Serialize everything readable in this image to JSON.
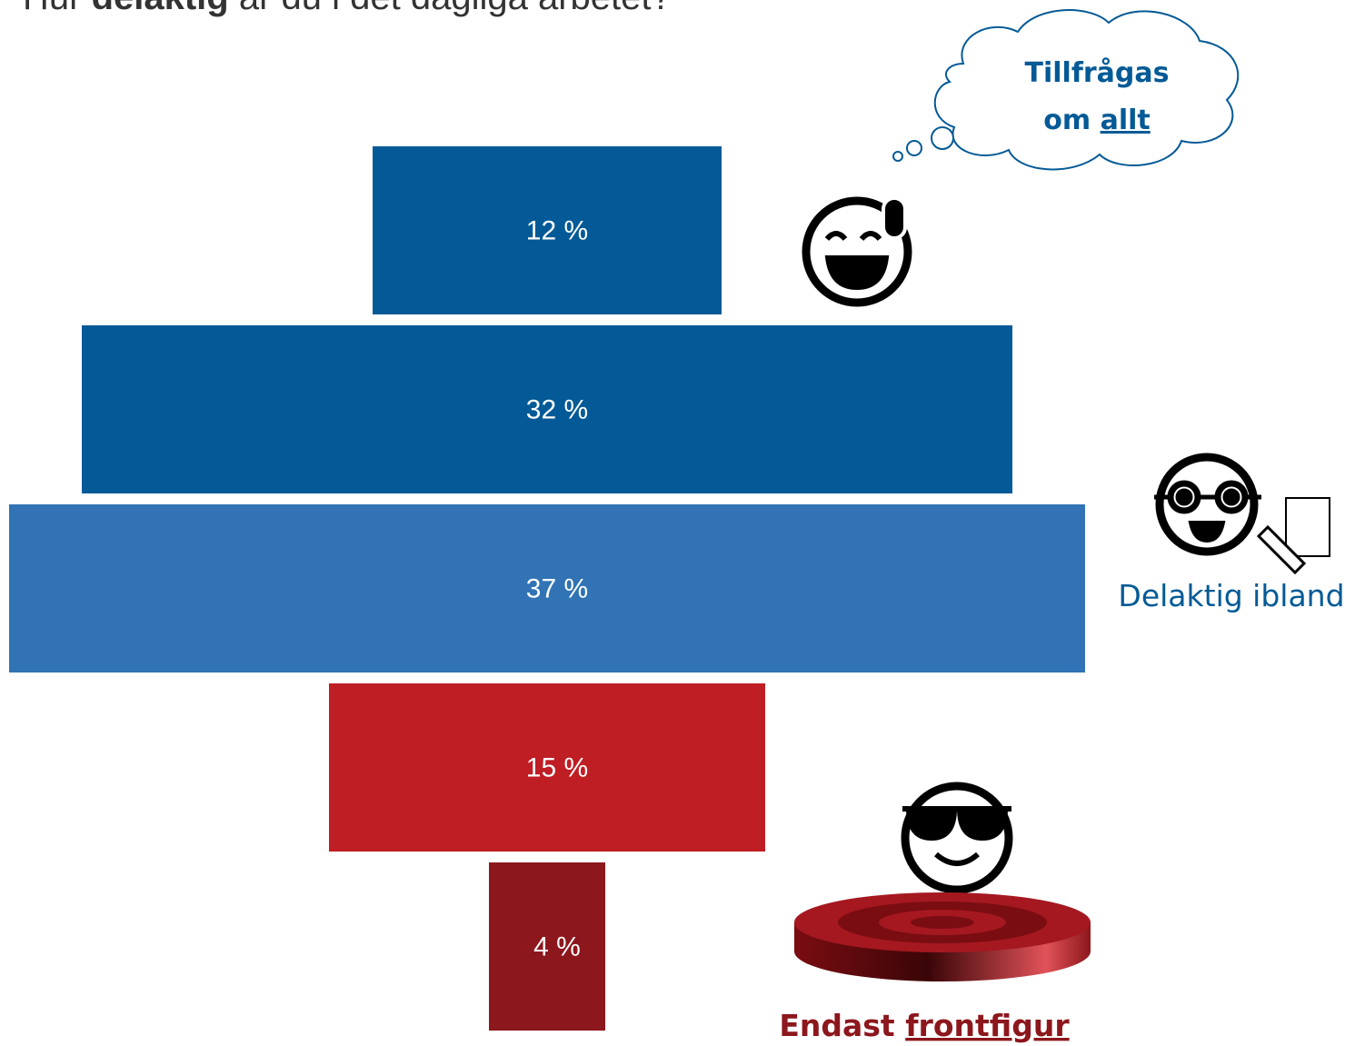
{
  "chart_data": {
    "type": "funnel",
    "title": [
      "Hur",
      "delaktig",
      "är du i det dagliga arbetet?"
    ],
    "categories": [
      null,
      null,
      null,
      null,
      null
    ],
    "values": [
      12,
      32,
      37,
      15,
      4
    ],
    "value_labels": [
      "12 %",
      "32 %",
      "37 %",
      "15 %",
      "4 %"
    ],
    "colors": [
      "#045a96",
      "#045a96",
      "#3173b4",
      "#be1e24",
      "#8c171c"
    ],
    "annotations": {
      "top": [
        "Tillfrågas",
        "om",
        "allt"
      ],
      "middle": "Delaktig ibland",
      "bottom": [
        "Endast",
        "frontfigur"
      ]
    }
  }
}
